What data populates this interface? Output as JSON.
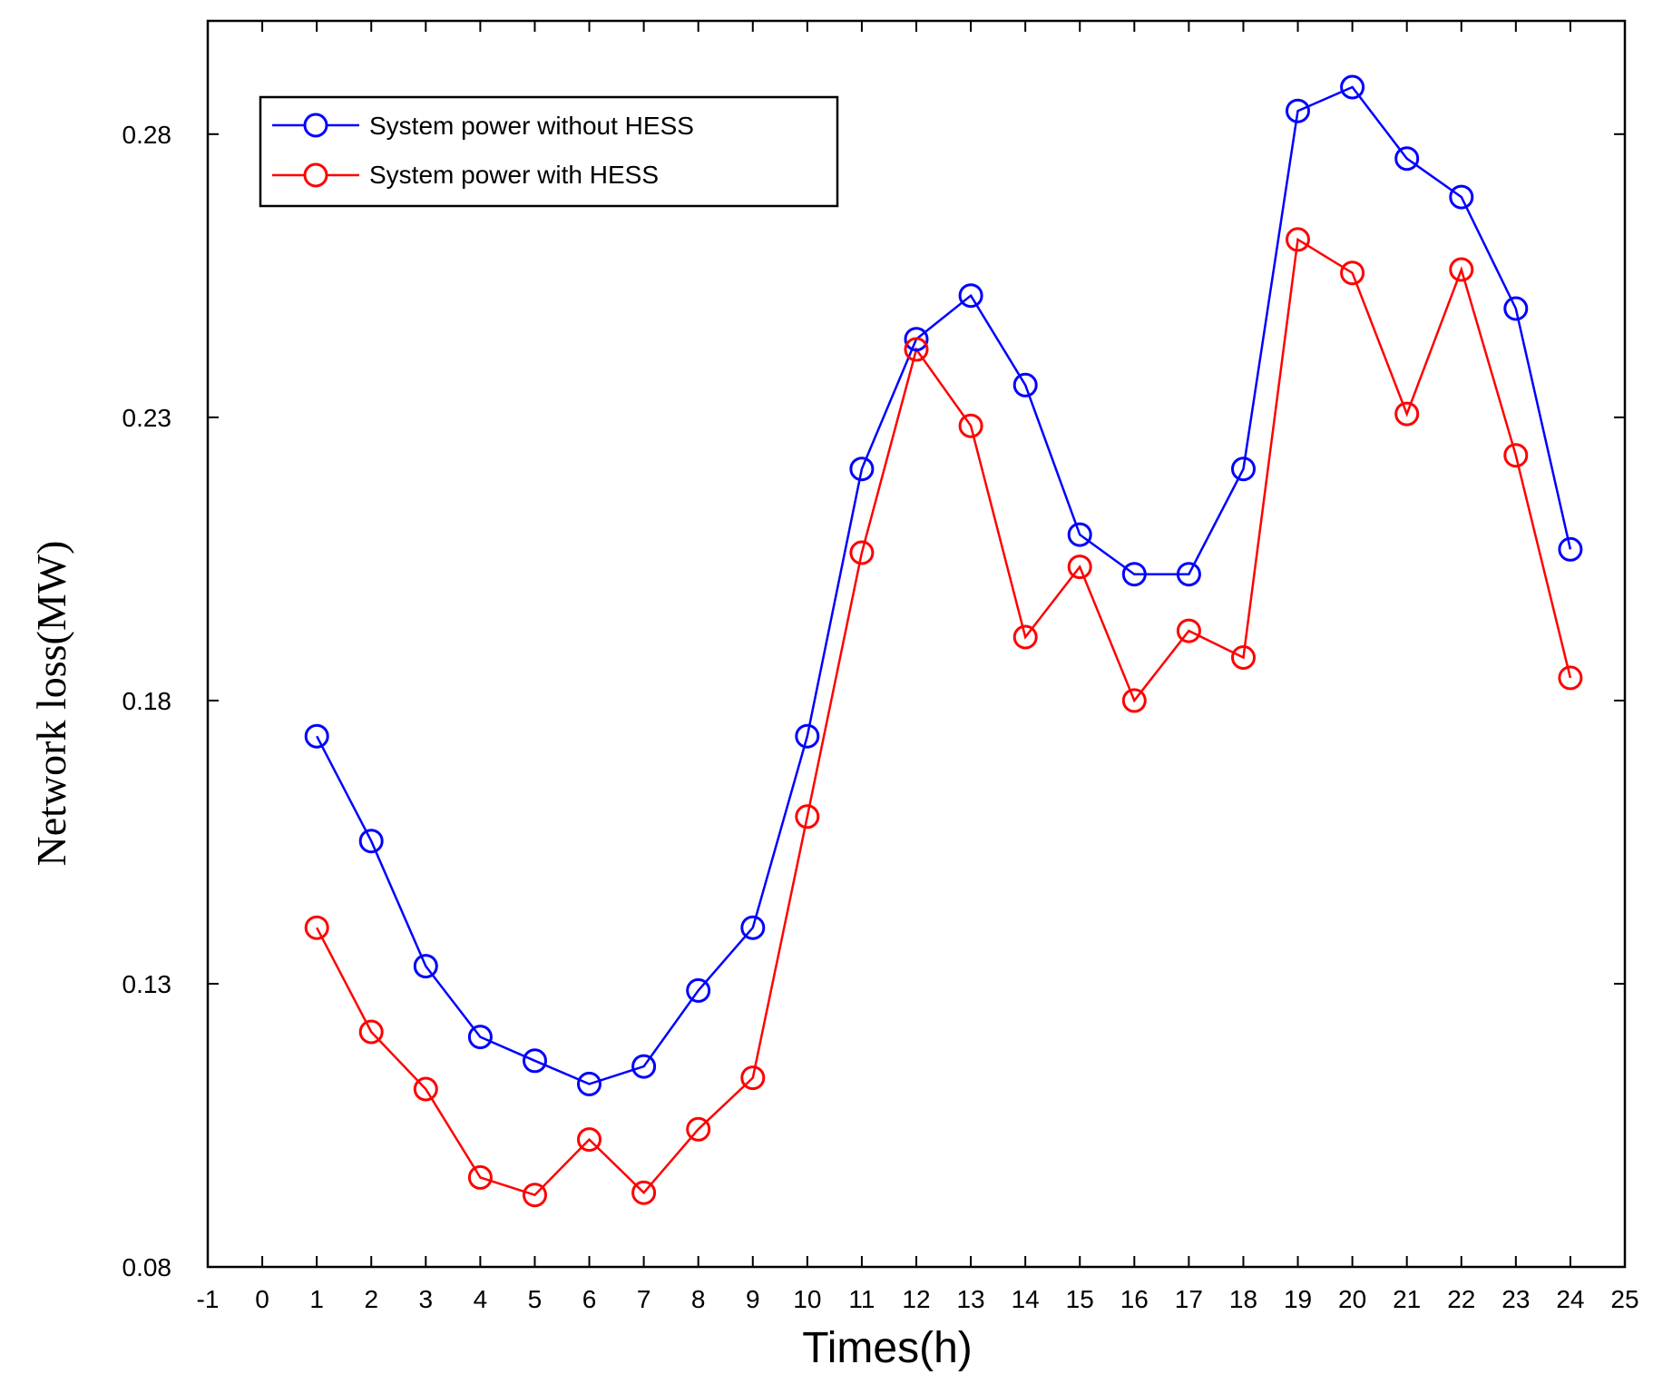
{
  "chart_data": {
    "type": "line",
    "title": "",
    "xlabel": "Times(h)",
    "ylabel": "Network loss(MW)",
    "xlim": [
      -1,
      25
    ],
    "ylim": [
      0.08,
      0.3
    ],
    "xticks": [
      "-1",
      "0",
      "1",
      "2",
      "3",
      "4",
      "5",
      "6",
      "7",
      "8",
      "9",
      "10",
      "11",
      "12",
      "13",
      "14",
      "15",
      "16",
      "17",
      "18",
      "19",
      "20",
      "21",
      "22",
      "23",
      "24",
      "25"
    ],
    "yticks": [
      "0.08",
      "0.13",
      "0.18",
      "0.23",
      "0.28"
    ],
    "x": [
      1,
      2,
      3,
      4,
      5,
      6,
      7,
      8,
      9,
      10,
      11,
      12,
      13,
      14,
      15,
      16,
      17,
      18,
      19,
      20,
      21,
      22,
      23,
      24
    ],
    "series": [
      {
        "name": "System power without HESS",
        "color": "#0000ff",
        "marker": "circle",
        "values": [
          0.1737,
          0.1552,
          0.1331,
          0.1206,
          0.1164,
          0.1123,
          0.1154,
          0.1288,
          0.1399,
          0.1737,
          0.2209,
          0.2438,
          0.2515,
          0.2357,
          0.2093,
          0.2023,
          0.2023,
          0.2209,
          0.2841,
          0.2883,
          0.2757,
          0.2689,
          0.2492,
          0.2067
        ]
      },
      {
        "name": "System power with HESS",
        "color": "#ff0000",
        "marker": "circle",
        "values": [
          0.1399,
          0.1215,
          0.1114,
          0.0958,
          0.0927,
          0.1025,
          0.0931,
          0.1043,
          0.1134,
          0.1595,
          0.2061,
          0.242,
          0.2285,
          0.1912,
          0.2036,
          0.18,
          0.1923,
          0.1876,
          0.2614,
          0.2555,
          0.2306,
          0.2561,
          0.2233,
          0.184
        ]
      }
    ],
    "legend_position": "top-left",
    "grid": false
  }
}
